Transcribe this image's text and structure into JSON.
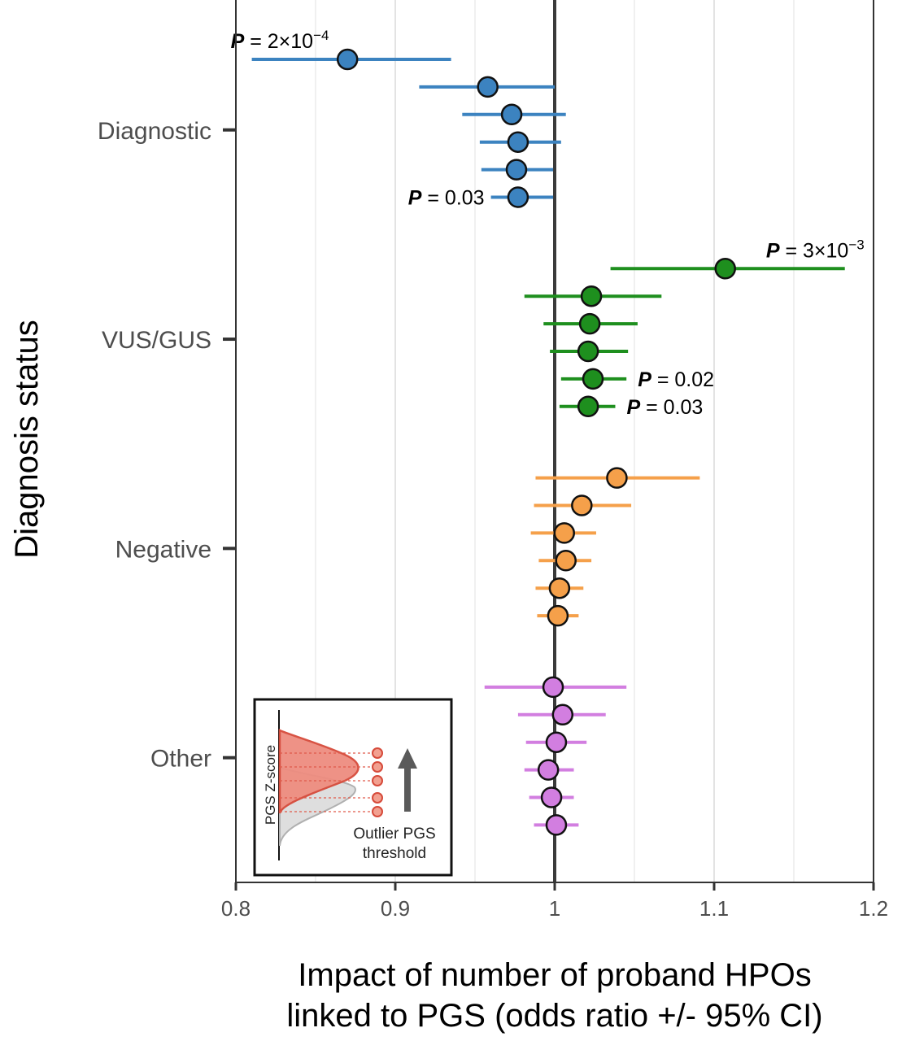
{
  "chart_data": {
    "type": "forest",
    "ylabel": "Diagnosis status",
    "xlabel_lines": [
      "Impact of number of proband HPOs",
      "linked to PGS (odds ratio +/- 95% CI)"
    ],
    "xlim": [
      0.8,
      1.2
    ],
    "xticks": [
      0.8,
      0.9,
      1,
      1.1,
      1.2
    ],
    "xtick_labels": [
      "0.8",
      "0.9",
      "1",
      "1.1",
      "1.2"
    ],
    "reference_line": 1,
    "grid": "vertical",
    "categories": [
      "Diagnostic",
      "VUS/GUS",
      "Negative",
      "Other"
    ],
    "groups": [
      {
        "name": "Diagnostic",
        "color": "#3C83C0",
        "points": [
          {
            "or": 0.87,
            "lo": 0.81,
            "hi": 0.935
          },
          {
            "or": 0.958,
            "lo": 0.915,
            "hi": 1.0
          },
          {
            "or": 0.973,
            "lo": 0.942,
            "hi": 1.007
          },
          {
            "or": 0.977,
            "lo": 0.953,
            "hi": 1.004
          },
          {
            "or": 0.976,
            "lo": 0.954,
            "hi": 0.999
          },
          {
            "or": 0.977,
            "lo": 0.96,
            "hi": 0.999
          }
        ],
        "annotations": [
          {
            "row": 0,
            "p_prefix": "P",
            "p_text": " = 2×10",
            "p_exp": "−4",
            "side": "left"
          },
          {
            "row": 5,
            "p_prefix": "P",
            "p_text": " = 0.03",
            "p_exp": "",
            "side": "left"
          }
        ]
      },
      {
        "name": "VUS/GUS",
        "color": "#1E8F1E",
        "points": [
          {
            "or": 1.107,
            "lo": 1.035,
            "hi": 1.182
          },
          {
            "or": 1.023,
            "lo": 0.981,
            "hi": 1.067
          },
          {
            "or": 1.022,
            "lo": 0.993,
            "hi": 1.052
          },
          {
            "or": 1.021,
            "lo": 0.997,
            "hi": 1.046
          },
          {
            "or": 1.024,
            "lo": 1.004,
            "hi": 1.045
          },
          {
            "or": 1.021,
            "lo": 1.003,
            "hi": 1.038
          }
        ],
        "annotations": [
          {
            "row": 0,
            "p_prefix": "P",
            "p_text": " = 3×10",
            "p_exp": "−3",
            "side": "right"
          },
          {
            "row": 4,
            "p_prefix": "P",
            "p_text": " = 0.02",
            "p_exp": "",
            "side": "right"
          },
          {
            "row": 5,
            "p_prefix": "P",
            "p_text": " = 0.03",
            "p_exp": "",
            "side": "right"
          }
        ]
      },
      {
        "name": "Negative",
        "color": "#F5A04A",
        "points": [
          {
            "or": 1.039,
            "lo": 0.988,
            "hi": 1.091
          },
          {
            "or": 1.017,
            "lo": 0.987,
            "hi": 1.048
          },
          {
            "or": 1.006,
            "lo": 0.985,
            "hi": 1.026
          },
          {
            "or": 1.007,
            "lo": 0.99,
            "hi": 1.023
          },
          {
            "or": 1.003,
            "lo": 0.988,
            "hi": 1.018
          },
          {
            "or": 1.002,
            "lo": 0.989,
            "hi": 1.015
          }
        ],
        "annotations": []
      },
      {
        "name": "Other",
        "color": "#D27EE0",
        "points": [
          {
            "or": 0.999,
            "lo": 0.956,
            "hi": 1.045
          },
          {
            "or": 1.005,
            "lo": 0.977,
            "hi": 1.032
          },
          {
            "or": 1.001,
            "lo": 0.982,
            "hi": 1.02
          },
          {
            "or": 0.996,
            "lo": 0.981,
            "hi": 1.012
          },
          {
            "or": 0.998,
            "lo": 0.984,
            "hi": 1.012
          },
          {
            "or": 1.001,
            "lo": 0.987,
            "hi": 1.015
          }
        ],
        "annotations": []
      }
    ],
    "inset": {
      "axis_label": "PGS Z-score",
      "threshold_label_lines": [
        "Outlier PGS",
        "threshold"
      ],
      "upper_color": "#E05A4A",
      "lower_color": "#BBBBBB"
    }
  }
}
